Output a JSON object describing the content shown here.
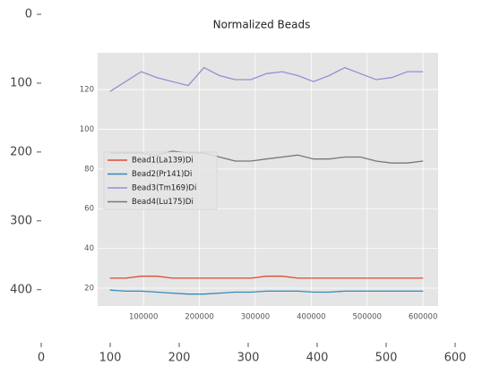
{
  "chart_data": [
    {
      "type": "image",
      "xlim": [
        0,
        600
      ],
      "ylim": [
        477,
        0
      ],
      "xticks": [
        0,
        100,
        200,
        300,
        400,
        500,
        600
      ],
      "yticks": [
        0,
        100,
        200,
        300,
        400
      ]
    },
    {
      "type": "line",
      "title": "Normalized Beads",
      "grid": true,
      "legend": "center-left",
      "x": [
        40000,
        68000,
        96000,
        124000,
        152000,
        180000,
        208000,
        236000,
        264000,
        292000,
        320000,
        348000,
        376000,
        404000,
        432000,
        460000,
        488000,
        516000,
        544000,
        572000,
        600000
      ],
      "xlim": [
        18000,
        627000
      ],
      "xticks": [
        100000,
        200000,
        300000,
        400000,
        500000,
        600000
      ],
      "ylim": [
        11,
        138.5
      ],
      "yticks": [
        20,
        40,
        60,
        80,
        100,
        120
      ],
      "series": [
        {
          "name": "Bead1(La139)Di",
          "color": "#E24A33",
          "values": [
            25,
            25,
            26,
            26,
            25,
            25,
            25,
            25,
            25,
            25,
            26,
            26,
            25,
            25,
            25,
            25,
            25,
            25,
            25,
            25,
            25
          ]
        },
        {
          "name": "Bead2(Pr141)Di",
          "color": "#348ABD",
          "values": [
            19,
            18.5,
            18.5,
            18,
            17.5,
            17,
            17,
            17.5,
            18,
            18,
            18.5,
            18.5,
            18.5,
            18,
            18,
            18.5,
            18.5,
            18.5,
            18.5,
            18.5,
            18.5
          ]
        },
        {
          "name": "Bead3(Tm169)Di",
          "color": "#988ED5",
          "values": [
            119,
            124,
            129,
            126,
            124,
            122,
            131,
            127,
            125,
            125,
            128,
            129,
            127,
            124,
            127,
            131,
            128,
            125,
            126,
            129,
            129
          ]
        },
        {
          "name": "Bead4(Lu175)Di",
          "color": "#777777",
          "values": [
            88,
            88,
            88,
            87,
            89,
            88,
            88,
            86,
            84,
            84,
            85,
            86,
            87,
            85,
            85,
            86,
            86,
            84,
            83,
            83,
            84
          ]
        }
      ]
    }
  ]
}
